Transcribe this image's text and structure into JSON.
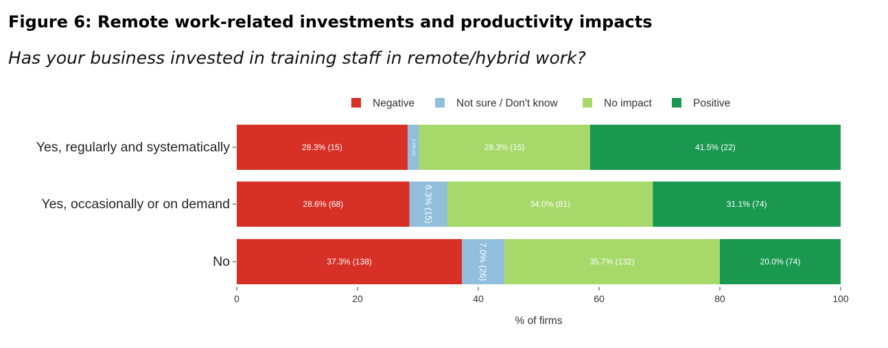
{
  "figure": {
    "title": "Figure 6: Remote work-related investments and productivity impacts",
    "subtitle": "Has your business invested in training staff in remote/hybrid work?"
  },
  "chart_data": {
    "type": "bar",
    "orientation": "horizontal",
    "stacked": true,
    "title": "",
    "xlabel": "% of firms",
    "ylabel": "",
    "xlim": [
      0,
      100
    ],
    "xticks": [
      0,
      20,
      40,
      60,
      80,
      100
    ],
    "grid": false,
    "legend_position": "top",
    "categories": [
      "Yes, regularly and systematically",
      "Yes, occasionally or on demand",
      "No"
    ],
    "series": [
      {
        "name": "Negative",
        "color": "#d73027",
        "values": [
          28.3,
          28.6,
          37.3
        ],
        "labels": [
          "28.3% (15)",
          "28.6% (68)",
          "37.3% (138)"
        ]
      },
      {
        "name": "Not sure / Don't know",
        "color": "#91bfdb",
        "values": [
          1.9,
          6.3,
          7.0
        ],
        "labels": [
          "1.9% (1)",
          "6.3% (15)",
          "7.0% (26)"
        ]
      },
      {
        "name": "No impact",
        "color": "#a6d96a",
        "values": [
          28.3,
          34.0,
          35.7
        ],
        "labels": [
          "28.3% (15)",
          "34.0% (81)",
          "35.7% (132)"
        ]
      },
      {
        "name": "Positive",
        "color": "#1a9850",
        "values": [
          41.5,
          31.1,
          20.0
        ],
        "labels": [
          "41.5% (22)",
          "31.1% (74)",
          "20.0% (74)"
        ]
      }
    ]
  }
}
